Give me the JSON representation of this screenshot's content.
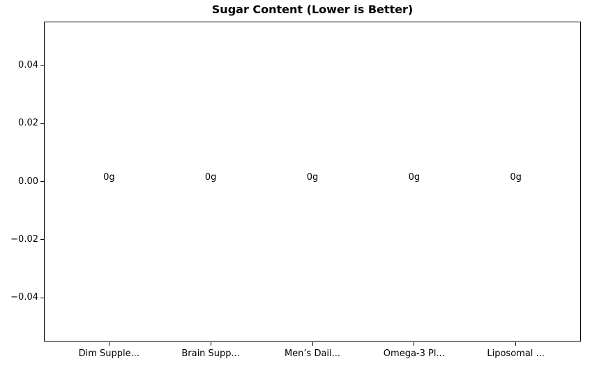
{
  "figure": {
    "background": "#ffffff",
    "text_color": "#000000",
    "spine_color": "#000000"
  },
  "chart_data": {
    "type": "bar",
    "title": "Sugar Content (Lower is Better)",
    "categories": [
      "Dim Supple...",
      "Brain Supp...",
      "Men’s Dail...",
      "Omega-3 Pl...",
      "Liposomal ..."
    ],
    "values": [
      0,
      0,
      0,
      0,
      0
    ],
    "bar_value_labels": [
      "0g",
      "0g",
      "0g",
      "0g",
      "0g"
    ],
    "xlabel": "",
    "ylabel": "",
    "xlim": [
      -0.64,
      4.64
    ],
    "ylim": [
      -0.055,
      0.055
    ],
    "yticks": [
      0.04,
      0.02,
      0,
      -0.02,
      -0.04
    ],
    "ytick_labels": [
      "0.04",
      "0.02",
      "0.00",
      "−0.02",
      "−0.04"
    ],
    "grid": false,
    "legend": null
  }
}
